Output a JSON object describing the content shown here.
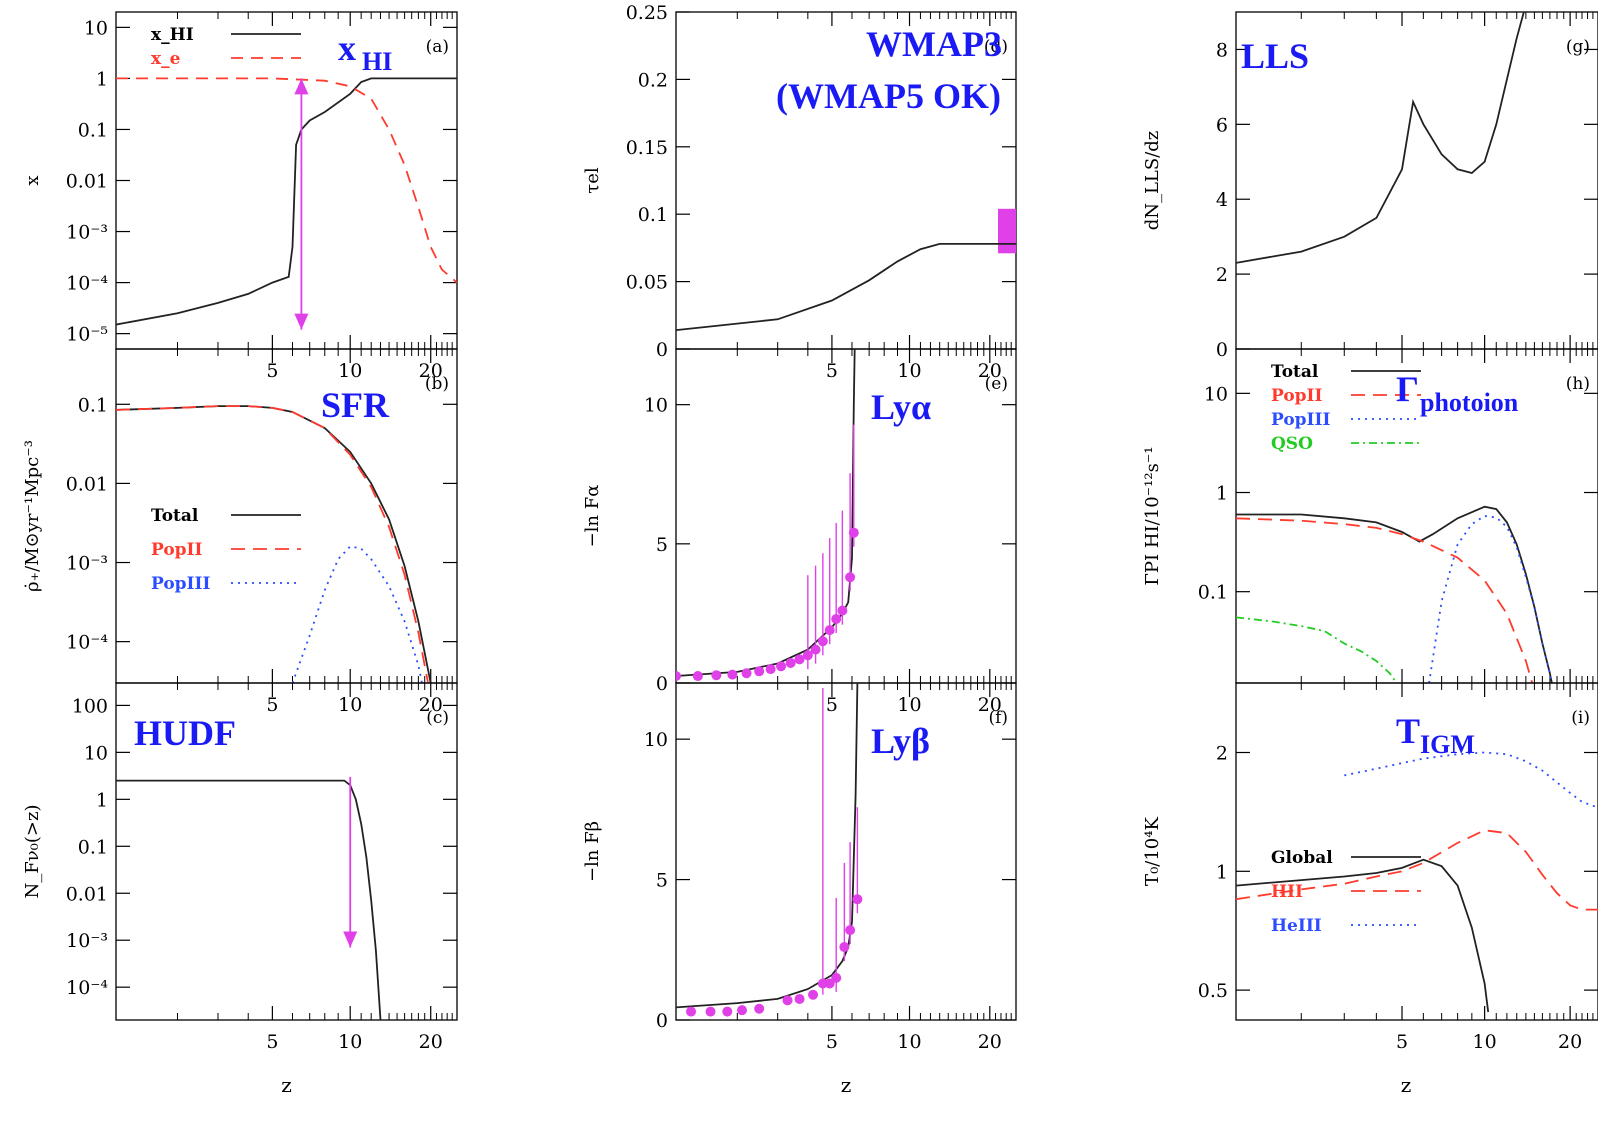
{
  "figure": {
    "x_axis_label": "z",
    "colors": {
      "magenta": "#e040e8",
      "blue_label": "#1a1af5",
      "total": "#222222",
      "popII": "#ff3b2e",
      "popIII": "#2b4cff",
      "qso": "#22cc22"
    }
  },
  "chart_data": [
    {
      "id": "a",
      "panel_label": "(a)",
      "type": "line",
      "big_label": "x",
      "big_label_sub": "HI",
      "ylabel": "x",
      "xlabel": "",
      "y_scale": "log",
      "xticks": [
        "5",
        "10",
        "20"
      ],
      "yticks": [
        "10",
        "1",
        "0.1",
        "0.01",
        "10⁻³",
        "10⁻⁴",
        "10⁻⁵"
      ],
      "legend": [
        "x_HI",
        "x_e"
      ],
      "series": [
        {
          "name": "x_HI",
          "z": [
            1,
            2,
            3,
            4,
            5,
            5.8,
            6.0,
            6.2,
            6.5,
            7,
            8,
            10,
            11,
            12,
            15,
            20,
            25
          ],
          "values": [
            1.5e-05,
            2.5e-05,
            4e-05,
            6e-05,
            0.0001,
            0.00013,
            0.0005,
            0.05,
            0.1,
            0.15,
            0.22,
            0.5,
            0.85,
            1,
            1,
            1,
            1
          ]
        },
        {
          "name": "x_e",
          "z": [
            1,
            5,
            8,
            10,
            12,
            14,
            16,
            18,
            20,
            22,
            25
          ],
          "values": [
            1,
            1,
            0.9,
            0.7,
            0.4,
            0.1,
            0.02,
            0.003,
            0.0005,
            0.00018,
            0.0001
          ]
        }
      ],
      "annotations": [
        {
          "type": "magenta-range-arrow",
          "z": 6.5,
          "y_top": 1,
          "y_bottom": 1.2e-05
        }
      ]
    },
    {
      "id": "b",
      "panel_label": "(b)",
      "type": "line",
      "big_label": "SFR",
      "ylabel": "ρ̇₊/M⊙yr⁻¹Mpc⁻³",
      "y_scale": "log",
      "xticks": [
        "5",
        "10",
        "20"
      ],
      "yticks": [
        "0.1",
        "0.01",
        "10⁻³",
        "10⁻⁴"
      ],
      "legend": [
        "Total",
        "PopII",
        "PopIII"
      ],
      "series": [
        {
          "name": "Total",
          "z": [
            1,
            2,
            3,
            4,
            5,
            6,
            8,
            10,
            12,
            14,
            16,
            18,
            20
          ],
          "values": [
            0.085,
            0.09,
            0.095,
            0.095,
            0.09,
            0.08,
            0.05,
            0.025,
            0.01,
            0.0035,
            0.0009,
            0.00018,
            3e-05
          ]
        },
        {
          "name": "PopII",
          "z": [
            1,
            2,
            3,
            4,
            5,
            6,
            8,
            10,
            12,
            14,
            16,
            18,
            20
          ],
          "values": [
            0.085,
            0.09,
            0.095,
            0.095,
            0.09,
            0.08,
            0.05,
            0.023,
            0.009,
            0.0028,
            0.0007,
            0.00013,
            2e-05
          ]
        },
        {
          "name": "PopIII",
          "z": [
            6,
            7,
            8,
            9,
            10,
            11,
            12,
            14,
            16,
            18,
            19
          ],
          "values": [
            3e-05,
            0.00012,
            0.00045,
            0.0011,
            0.0016,
            0.0015,
            0.0011,
            0.0005,
            0.00018,
            5e-05,
            2e-05
          ]
        }
      ]
    },
    {
      "id": "c",
      "panel_label": "(c)",
      "type": "line",
      "big_label": "HUDF",
      "ylabel": "N_Fν₀(>z)",
      "y_scale": "log",
      "xticks": [
        "5",
        "10",
        "20"
      ],
      "yticks": [
        "100",
        "10",
        "1",
        "0.1",
        "0.01",
        "10⁻³",
        "10⁻⁴"
      ],
      "series": [
        {
          "name": "model",
          "z": [
            1,
            5,
            8,
            9.5,
            10,
            10.5,
            11,
            11.5,
            12,
            12.5,
            13
          ],
          "values": [
            2.5,
            2.5,
            2.5,
            2.5,
            2,
            1,
            0.3,
            0.06,
            0.007,
            0.0006,
            2e-05
          ]
        }
      ],
      "annotations": [
        {
          "type": "magenta-upper-limit-arrow",
          "z": 10,
          "y_top": 3,
          "y_bottom": 0.0007
        }
      ]
    },
    {
      "id": "d",
      "panel_label": "(d)",
      "type": "line",
      "big_label": "WMAP3",
      "big_label_2": "(WMAP5 OK)",
      "ylabel": "τel",
      "xticks": [
        "5",
        "10",
        "20"
      ],
      "yticks": [
        "0.25",
        "0.2",
        "0.15",
        "0.1",
        "0.05",
        "0"
      ],
      "ylim": [
        0,
        0.25
      ],
      "series": [
        {
          "name": "tau_el",
          "z": [
            1,
            3,
            5,
            7,
            9,
            11,
            13,
            14,
            15,
            20,
            25
          ],
          "values": [
            0.014,
            0.022,
            0.036,
            0.051,
            0.065,
            0.074,
            0.078,
            0.078,
            0.078,
            0.078,
            0.078
          ]
        }
      ],
      "annotations": [
        {
          "type": "magenta-band",
          "y_min": 0.071,
          "y_max": 0.104
        }
      ]
    },
    {
      "id": "e",
      "panel_label": "(e)",
      "type": "line",
      "big_label": "Lyα",
      "ylabel": "−ln Fα",
      "xticks": [
        "5",
        "10",
        "20"
      ],
      "yticks": [
        "10",
        "5",
        "0"
      ],
      "ylim": [
        0,
        12
      ],
      "series": [
        {
          "name": "model",
          "z": [
            1,
            2,
            3,
            4,
            5,
            5.5,
            5.8,
            6.0,
            6.1,
            6.15
          ],
          "values": [
            0.25,
            0.4,
            0.7,
            1.2,
            2.0,
            2.5,
            2.9,
            4.5,
            10,
            12
          ]
        },
        {
          "name": "data",
          "z": [
            1.0,
            1.3,
            1.6,
            1.9,
            2.2,
            2.5,
            2.8,
            3.1,
            3.4,
            3.7,
            4.0,
            4.3,
            4.6,
            4.9,
            5.2,
            5.5,
            5.9,
            6.1
          ],
          "values": [
            0.25,
            0.25,
            0.28,
            0.3,
            0.35,
            0.42,
            0.5,
            0.6,
            0.72,
            0.85,
            1.0,
            1.2,
            1.5,
            1.9,
            2.3,
            2.6,
            3.8,
            5.4
          ]
        }
      ]
    },
    {
      "id": "f",
      "panel_label": "(f)",
      "type": "line",
      "big_label": "Lyβ",
      "ylabel": "−ln Fβ",
      "xticks": [
        "5",
        "10",
        "20"
      ],
      "yticks": [
        "10",
        "5",
        "0"
      ],
      "ylim": [
        0,
        12
      ],
      "series": [
        {
          "name": "model",
          "z": [
            1,
            2,
            3,
            4,
            5,
            5.5,
            5.8,
            6.0,
            6.2,
            6.3
          ],
          "values": [
            0.45,
            0.6,
            0.75,
            1.1,
            1.6,
            2.1,
            2.6,
            3.5,
            8,
            12
          ]
        },
        {
          "name": "data",
          "z": [
            1.2,
            1.5,
            1.8,
            2.1,
            2.5,
            3.3,
            3.7,
            4.2,
            4.6,
            4.9,
            5.2,
            5.6,
            5.9,
            6.3
          ],
          "values": [
            0.3,
            0.3,
            0.3,
            0.35,
            0.4,
            0.7,
            0.75,
            0.9,
            1.3,
            1.3,
            1.5,
            2.6,
            3.2,
            4.3
          ]
        }
      ]
    },
    {
      "id": "g",
      "panel_label": "(g)",
      "type": "line",
      "big_label": "LLS",
      "ylabel": "dN_LLS/dz",
      "xticks": [],
      "yticks": [
        "8",
        "6",
        "4",
        "2",
        "0"
      ],
      "ylim": [
        0,
        9
      ],
      "series": [
        {
          "name": "model",
          "z": [
            1,
            2,
            3,
            4,
            5,
            5.5,
            6,
            7,
            8,
            9,
            10,
            11,
            12,
            13,
            14
          ],
          "values": [
            2.3,
            2.6,
            3.0,
            3.5,
            4.8,
            6.6,
            6.0,
            5.2,
            4.8,
            4.7,
            5.0,
            6.0,
            7.2,
            8.3,
            9.2
          ]
        }
      ]
    },
    {
      "id": "h",
      "panel_label": "(h)",
      "type": "line",
      "big_label": "Γ",
      "big_label_sub": "photoion",
      "ylabel": "ΓPI HI/10⁻¹²s⁻¹",
      "y_scale": "log",
      "xticks": [],
      "yticks": [
        "10",
        "1",
        "0.1"
      ],
      "legend": [
        "Total",
        "PopII",
        "PopIII",
        "QSO"
      ],
      "series": [
        {
          "name": "Total",
          "z": [
            1,
            2,
            3,
            4,
            5,
            5.8,
            6.5,
            8,
            10,
            11,
            12,
            13,
            14,
            15,
            16,
            17,
            17.5
          ],
          "values": [
            0.6,
            0.6,
            0.55,
            0.5,
            0.4,
            0.32,
            0.38,
            0.55,
            0.72,
            0.68,
            0.5,
            0.3,
            0.15,
            0.07,
            0.03,
            0.015,
            0.01
          ]
        },
        {
          "name": "PopII",
          "z": [
            1,
            2,
            3,
            4,
            5,
            6,
            8,
            10,
            12,
            14,
            15,
            16
          ],
          "values": [
            0.55,
            0.52,
            0.48,
            0.44,
            0.38,
            0.32,
            0.22,
            0.13,
            0.06,
            0.02,
            0.01,
            0.005
          ]
        },
        {
          "name": "PopIII",
          "z": [
            6.3,
            7,
            8,
            9,
            10,
            11,
            12,
            13,
            14,
            15,
            16,
            17,
            17.5
          ],
          "values": [
            0.012,
            0.08,
            0.3,
            0.48,
            0.58,
            0.56,
            0.45,
            0.28,
            0.14,
            0.07,
            0.03,
            0.015,
            0.01
          ]
        },
        {
          "name": "QSO",
          "z": [
            1,
            1.5,
            2,
            2.5,
            3,
            3.5,
            4,
            4.5,
            5
          ],
          "values": [
            0.055,
            0.05,
            0.045,
            0.04,
            0.03,
            0.025,
            0.02,
            0.015,
            0.01
          ]
        }
      ]
    },
    {
      "id": "i",
      "panel_label": "(i)",
      "type": "line",
      "big_label": "T",
      "big_label_sub": "IGM",
      "ylabel": "T₀/10⁴K",
      "y_scale": "log",
      "xticks": [
        "5",
        "10",
        "20"
      ],
      "yticks": [
        "2",
        "1",
        "0.5"
      ],
      "legend": [
        "Global",
        "HII",
        "HeIII"
      ],
      "series": [
        {
          "name": "Global",
          "z": [
            1,
            2,
            3,
            4,
            5,
            6,
            7,
            8,
            9,
            10,
            10.3
          ],
          "values": [
            0.92,
            0.95,
            0.97,
            0.99,
            1.02,
            1.07,
            1.03,
            0.92,
            0.72,
            0.52,
            0.44
          ]
        },
        {
          "name": "HII",
          "z": [
            1,
            2,
            3,
            4,
            5,
            6,
            8,
            10,
            12,
            14,
            16,
            18,
            20,
            22,
            25
          ],
          "values": [
            0.85,
            0.9,
            0.93,
            0.97,
            1.0,
            1.05,
            1.18,
            1.27,
            1.25,
            1.12,
            0.98,
            0.88,
            0.82,
            0.8,
            0.8
          ]
        },
        {
          "name": "HeIII",
          "z": [
            3,
            4,
            5,
            6,
            8,
            10,
            12,
            14,
            16,
            18,
            20,
            22,
            25
          ],
          "values": [
            1.75,
            1.82,
            1.88,
            1.93,
            1.98,
            2.0,
            1.98,
            1.9,
            1.8,
            1.68,
            1.58,
            1.5,
            1.45
          ]
        }
      ]
    }
  ]
}
